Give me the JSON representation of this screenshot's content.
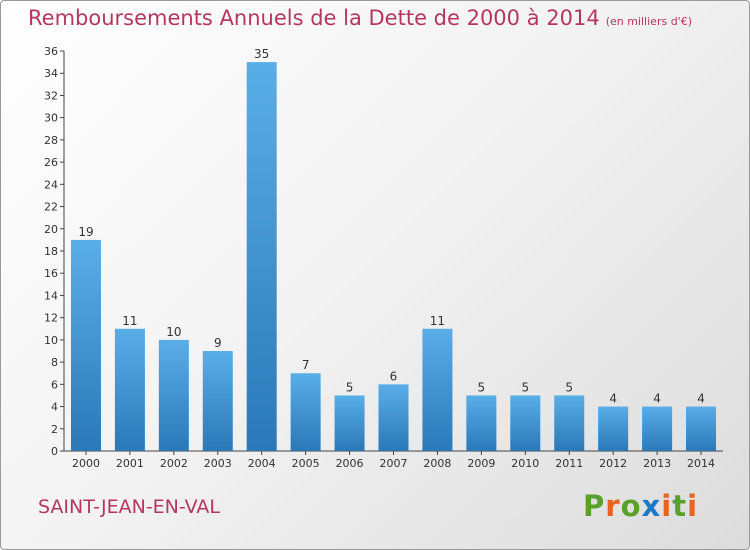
{
  "header": {
    "title": "Remboursements Annuels de la Dette de 2000 à 2014",
    "subtitle": "(en milliers d'€)"
  },
  "footer": {
    "commune": "SAINT-JEAN-EN-VAL",
    "logo_text": "Proxiti"
  },
  "colors": {
    "title": "#b5375f",
    "bar_top": "#5aaee8",
    "bar_bottom": "#2a78b8",
    "logo_letters": [
      "#5aa02c",
      "#e8641e",
      "#5aa02c",
      "#1e78c8",
      "#e8641e",
      "#5aa02c",
      "#e8641e"
    ]
  },
  "chart_data": {
    "type": "bar",
    "title": "Remboursements Annuels de la Dette de 2000 à 2014",
    "subtitle": "(en milliers d'€)",
    "xlabel": "",
    "ylabel": "",
    "categories": [
      "2000",
      "2001",
      "2002",
      "2003",
      "2004",
      "2005",
      "2006",
      "2007",
      "2008",
      "2009",
      "2010",
      "2011",
      "2012",
      "2013",
      "2014"
    ],
    "values": [
      19,
      11,
      10,
      9,
      35,
      7,
      5,
      6,
      11,
      5,
      5,
      5,
      4,
      4,
      4
    ],
    "ylim": [
      0,
      36
    ],
    "yticks": [
      0,
      2,
      4,
      6,
      8,
      10,
      12,
      14,
      16,
      18,
      20,
      22,
      24,
      26,
      28,
      30,
      32,
      34,
      36
    ],
    "grid": false,
    "data_labels": true
  }
}
